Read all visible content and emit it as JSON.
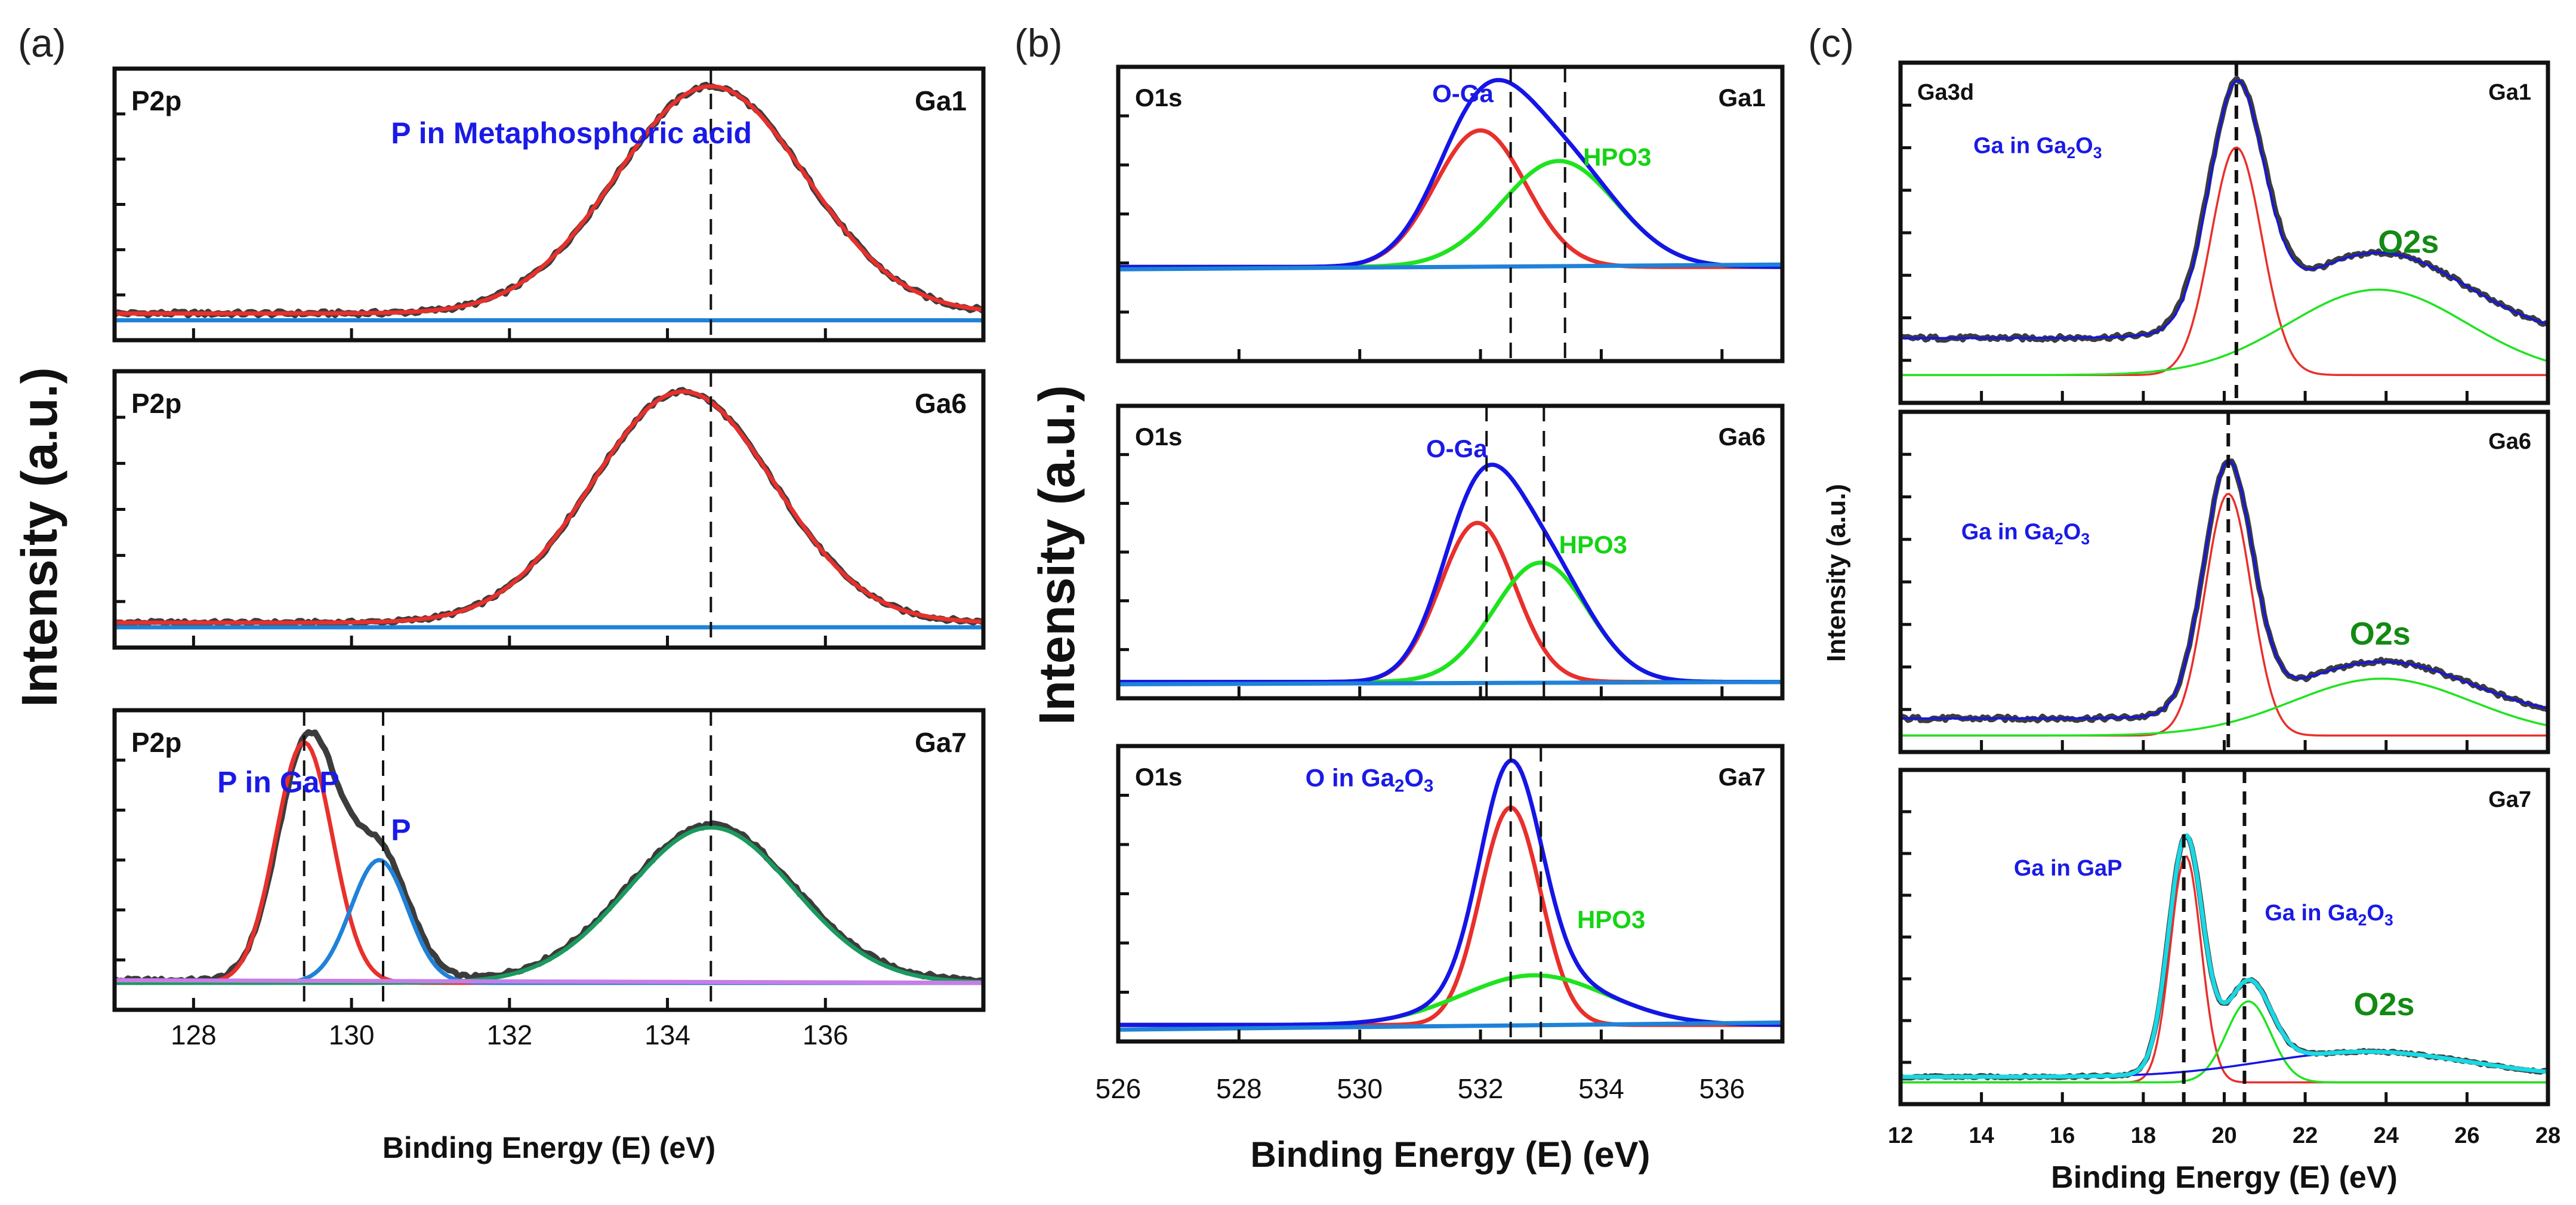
{
  "figure": {
    "axis_label_y": "Intensity (a.u.)",
    "x_label_a": "Binding Energy (E) (eV)",
    "x_label_b": "Binding Energy (E) (eV)",
    "x_label_c": "Binding Energy (E) (eV)"
  },
  "colors": {
    "frame": "#111111",
    "data": "#3c3c3c",
    "red": "#e8302c",
    "blue": "#1515e6",
    "green": "#1fe31f",
    "baseline": "#1f82d8",
    "violet": "#c77ee6",
    "darkgreen": "#1a9a5e",
    "label_blue": "#1a1ae6",
    "label_green": "#14d414",
    "o2s_green": "#138a13",
    "cyan": "#18d9e4"
  },
  "chart_data": [
    {
      "panel": "(a)",
      "type": "line",
      "xlabel": "Binding Energy (E) (eV)",
      "ylabel": "Intensity (a.u.)",
      "xlim": [
        127,
        138
      ],
      "xticks": [
        128,
        130,
        132,
        134,
        136
      ],
      "subplots": [
        {
          "element": "P2p",
          "sample": "Ga1",
          "ylim": [
            0,
            1.1
          ],
          "vlines": [
            134.55
          ],
          "annotations": [
            {
              "text": "P in Metaphosphoric acid",
              "x": 130.5,
              "y": 0.82,
              "color": "blue"
            }
          ],
          "series": [
            {
              "type": "data",
              "color": "data",
              "noise": 0.012,
              "peaks": [
                [
                  134.55,
                  1.0,
                  1.2
                ]
              ],
              "baseline": 0.07
            },
            {
              "type": "fit",
              "color": "red",
              "peaks": [
                [
                  134.55,
                  1.0,
                  1.2
                ]
              ],
              "baseline": 0.07
            },
            {
              "type": "line",
              "color": "baseline",
              "points": [
                [
                  127,
                  0.04
                ],
                [
                  138,
                  0.04
                ]
              ]
            }
          ]
        },
        {
          "element": "P2p",
          "sample": "Ga6",
          "ylim": [
            0,
            1.1
          ],
          "vlines": [
            134.55
          ],
          "series": [
            {
              "type": "data",
              "color": "data",
              "noise": 0.01,
              "peaks": [
                [
                  134.2,
                  1.0,
                  1.15
                ]
              ],
              "baseline": 0.06
            },
            {
              "type": "fit",
              "color": "red",
              "peaks": [
                [
                  134.2,
                  1.0,
                  1.15
                ]
              ],
              "baseline": 0.06
            },
            {
              "type": "line",
              "color": "baseline",
              "points": [
                [
                  127,
                  0.04
                ],
                [
                  138,
                  0.04
                ]
              ]
            }
          ]
        },
        {
          "element": "P2p",
          "sample": "Ga7",
          "ylim": [
            0,
            1.1
          ],
          "vlines": [
            129.4,
            130.4,
            134.55
          ],
          "annotations": [
            {
              "text": "P in GaP",
              "x": 128.3,
              "y": 0.82,
              "color": "blue"
            },
            {
              "text": "P",
              "x": 130.5,
              "y": 0.63,
              "color": "blue"
            }
          ],
          "series": [
            {
              "type": "data",
              "color": "data",
              "noise": 0.01,
              "peaks": [
                [
                  129.45,
                  0.96,
                  0.38
                ],
                [
                  130.35,
                  0.5,
                  0.38
                ],
                [
                  134.55,
                  0.62,
                  1.05
                ]
              ],
              "baseline": 0.07
            },
            {
              "type": "fit",
              "color": "red",
              "peaks": [
                [
                  129.4,
                  0.96,
                  0.36
                ]
              ],
              "baseline": 0.06
            },
            {
              "type": "fit",
              "color": "baseline",
              "peaks": [
                [
                  130.35,
                  0.49,
                  0.36
                ]
              ],
              "baseline": 0.06
            },
            {
              "type": "fit",
              "color": "darkgreen",
              "peaks": [
                [
                  134.55,
                  0.62,
                  1.05
                ]
              ],
              "baseline": 0.06
            },
            {
              "type": "line",
              "color": "violet",
              "points": [
                [
                  127,
                  0.07
                ],
                [
                  138,
                  0.06
                ]
              ]
            }
          ]
        }
      ]
    },
    {
      "panel": "(b)",
      "type": "line",
      "xlabel": "Binding Energy (E) (eV)",
      "ylabel": "Intensity (a.u.)",
      "xlim": [
        526,
        537
      ],
      "xticks": [
        526,
        528,
        530,
        532,
        534,
        536
      ],
      "subplots": [
        {
          "element": "O1s",
          "sample": "Ga1",
          "ylim": [
            0,
            1.15
          ],
          "vlines": [
            532.5,
            533.4
          ],
          "annotations": [
            {
              "text": "O-Ga",
              "x": 531.2,
              "y": 1.05,
              "color": "blue"
            },
            {
              "text": "HPO3",
              "x": 533.7,
              "y": 0.78,
              "color": "green"
            }
          ],
          "series": [
            {
              "type": "fit",
              "color": "red",
              "peaks": [
                [
                  532.0,
                  0.58,
                  0.75
                ]
              ],
              "baseline": 0.35
            },
            {
              "type": "fit",
              "color": "green",
              "peaks": [
                [
                  533.3,
                  0.45,
                  0.95
                ]
              ],
              "baseline": 0.35
            },
            {
              "type": "fit",
              "color": "blue",
              "peaks": [
                [
                  532.0,
                  0.58,
                  0.75
                ],
                [
                  533.3,
                  0.45,
                  0.95
                ]
              ],
              "baseline": 0.35
            },
            {
              "type": "line",
              "color": "baseline",
              "points": [
                [
                  526,
                  0.34
                ],
                [
                  537,
                  0.36
                ]
              ]
            }
          ]
        },
        {
          "element": "O1s",
          "sample": "Ga6",
          "ylim": [
            0,
            1.15
          ],
          "vlines": [
            532.1,
            533.05
          ],
          "annotations": [
            {
              "text": "O-Ga",
              "x": 531.1,
              "y": 0.98,
              "color": "blue"
            },
            {
              "text": "HPO3",
              "x": 533.3,
              "y": 0.57,
              "color": "green"
            }
          ],
          "series": [
            {
              "type": "fit",
              "color": "red",
              "peaks": [
                [
                  531.95,
                  0.68,
                  0.62
                ]
              ],
              "baseline": 0.02
            },
            {
              "type": "fit",
              "color": "green",
              "peaks": [
                [
                  533.0,
                  0.51,
                  0.78
                ]
              ],
              "baseline": 0.02
            },
            {
              "type": "fit",
              "color": "blue",
              "peaks": [
                [
                  531.95,
                  0.68,
                  0.62
                ],
                [
                  533.0,
                  0.51,
                  0.78
                ]
              ],
              "baseline": 0.02
            },
            {
              "type": "line",
              "color": "baseline",
              "points": [
                [
                  526,
                  0.01
                ],
                [
                  537,
                  0.02
                ]
              ]
            }
          ]
        },
        {
          "element": "O1s",
          "sample": "Ga7",
          "ylim": [
            0,
            1.15
          ],
          "vlines": [
            532.5,
            533.0
          ],
          "annotations": [
            {
              "text": "O in Ga2O3",
              "x": 529.1,
              "y": 1.03,
              "color": "blue"
            },
            {
              "text": "HPO3",
              "x": 533.6,
              "y": 0.43,
              "color": "green"
            }
          ],
          "series": [
            {
              "type": "fit",
              "color": "red",
              "peaks": [
                [
                  532.5,
                  0.92,
                  0.5
                ]
              ],
              "baseline": 0.02
            },
            {
              "type": "fit",
              "color": "green",
              "peaks": [
                [
                  532.9,
                  0.21,
                  1.2
                ]
              ],
              "baseline": 0.02
            },
            {
              "type": "fit",
              "color": "blue",
              "peaks": [
                [
                  532.5,
                  0.92,
                  0.5
                ],
                [
                  532.9,
                  0.21,
                  1.2
                ]
              ],
              "baseline": 0.02
            },
            {
              "type": "line",
              "color": "baseline",
              "points": [
                [
                  526,
                  0.0
                ],
                [
                  537,
                  0.03
                ]
              ]
            }
          ]
        }
      ]
    },
    {
      "panel": "(c)",
      "type": "line",
      "xlabel": "Binding Energy (E) (eV)",
      "ylabel": "Intensity (a.u.)",
      "xlim": [
        12,
        28
      ],
      "xticks": [
        12,
        14,
        16,
        18,
        20,
        22,
        24,
        26,
        28
      ],
      "subplots": [
        {
          "element": "Ga3d",
          "sample": "Ga1",
          "ylim": [
            0,
            1.1
          ],
          "vlines": [
            20.3
          ],
          "annotations": [
            {
              "text": "Ga in Ga2O3",
              "x": 13.8,
              "y": 0.83,
              "color": "blue"
            },
            {
              "text": "O2s",
              "x": 23.8,
              "y": 0.48,
              "color": "green"
            }
          ],
          "series": [
            {
              "type": "data",
              "color": "data",
              "noise": 0.01,
              "peaks": [
                [
                  20.3,
                  0.82,
                  0.68
                ],
                [
                  23.8,
                  0.3,
                  2.2
                ]
              ],
              "baseline": 0.18
            },
            {
              "type": "fit",
              "color": "red",
              "peaks": [
                [
                  20.3,
                  0.8,
                  0.63
                ]
              ],
              "baseline": 0.05
            },
            {
              "type": "fit",
              "color": "green",
              "peaks": [
                [
                  23.8,
                  0.3,
                  2.2
                ]
              ],
              "baseline": 0.05
            },
            {
              "type": "fit",
              "color": "blue",
              "peaks": [
                [
                  20.3,
                  0.82,
                  0.66
                ],
                [
                  23.8,
                  0.3,
                  2.2
                ]
              ],
              "baseline": 0.18
            }
          ]
        },
        {
          "element": "",
          "sample": "Ga6",
          "ylim": [
            0,
            1.1
          ],
          "vlines": [
            20.1
          ],
          "annotations": [
            {
              "text": "Ga in Ga2O3",
              "x": 13.5,
              "y": 0.7,
              "color": "blue"
            },
            {
              "text": "O2s",
              "x": 23.1,
              "y": 0.33,
              "color": "green"
            }
          ],
          "series": [
            {
              "type": "data",
              "color": "data",
              "noise": 0.01,
              "peaks": [
                [
                  20.1,
                  0.86,
                  0.6
                ],
                [
                  23.9,
                  0.2,
                  2.2
                ]
              ],
              "baseline": 0.07
            },
            {
              "type": "fit",
              "color": "red",
              "peaks": [
                [
                  20.1,
                  0.85,
                  0.57
                ]
              ],
              "baseline": 0.01
            },
            {
              "type": "fit",
              "color": "green",
              "peaks": [
                [
                  23.9,
                  0.2,
                  2.2
                ]
              ],
              "baseline": 0.01
            },
            {
              "type": "fit",
              "color": "blue",
              "peaks": [
                [
                  20.1,
                  0.86,
                  0.6
                ],
                [
                  23.9,
                  0.2,
                  2.2
                ]
              ],
              "baseline": 0.07
            }
          ]
        },
        {
          "element": "",
          "sample": "Ga7",
          "ylim": [
            0,
            1.1
          ],
          "vlines": [
            19.0,
            20.5
          ],
          "annotations": [
            {
              "text": "Ga in GaP",
              "x": 14.8,
              "y": 0.77,
              "color": "blue"
            },
            {
              "text": "Ga in Ga2O3",
              "x": 21.0,
              "y": 0.61,
              "color": "blue"
            },
            {
              "text": "O2s",
              "x": 23.2,
              "y": 0.27,
              "color": "green"
            }
          ],
          "series": [
            {
              "type": "data",
              "color": "data",
              "noise": 0.005,
              "peaks": [
                [
                  19.05,
                  0.84,
                  0.42
                ],
                [
                  20.6,
                  0.3,
                  0.55
                ],
                [
                  23.5,
                  0.09,
                  2.5
                ]
              ],
              "baseline": 0.05
            },
            {
              "type": "fit",
              "color": "red",
              "peaks": [
                [
                  19.05,
                  0.81,
                  0.38
                ]
              ],
              "baseline": 0.03
            },
            {
              "type": "fit",
              "color": "green",
              "peaks": [
                [
                  20.6,
                  0.29,
                  0.55
                ]
              ],
              "baseline": 0.03
            },
            {
              "type": "fit",
              "color": "blue",
              "peaks": [
                [
                  23.5,
                  0.09,
                  2.5
                ]
              ],
              "baseline": 0.05
            },
            {
              "type": "fit",
              "color": "cyan",
              "peaks": [
                [
                  19.05,
                  0.84,
                  0.42
                ],
                [
                  20.6,
                  0.3,
                  0.55
                ],
                [
                  23.5,
                  0.09,
                  2.5
                ]
              ],
              "baseline": 0.05
            }
          ]
        }
      ]
    }
  ]
}
